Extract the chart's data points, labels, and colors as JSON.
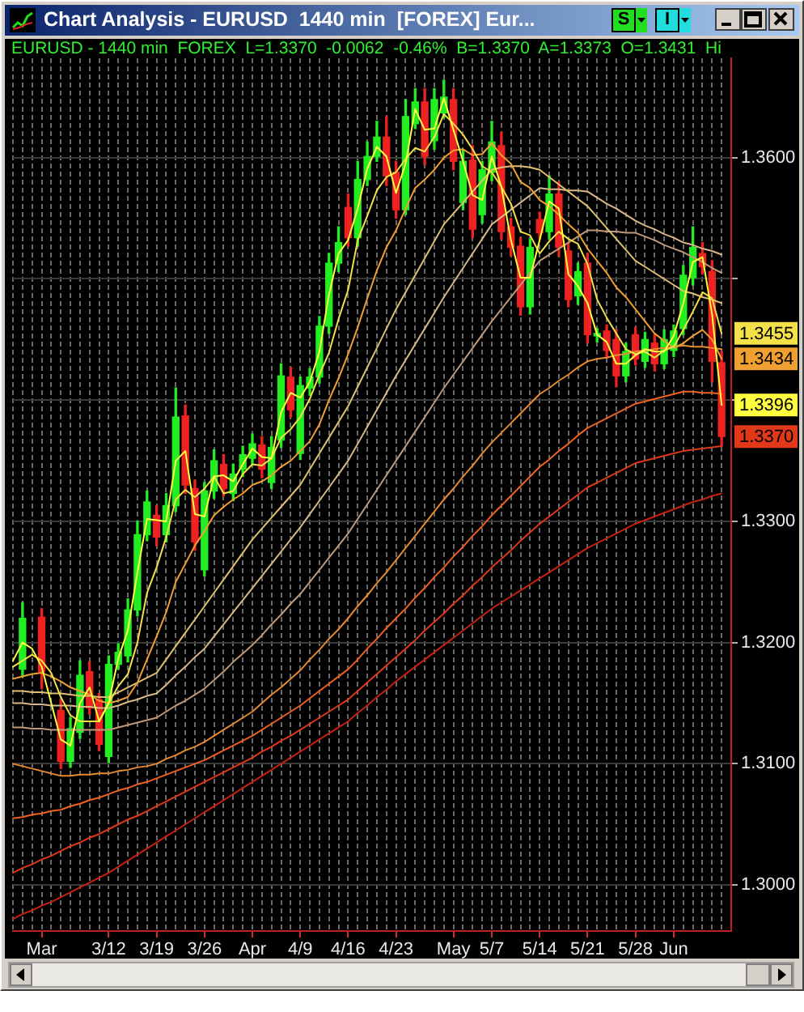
{
  "chart_data": {
    "type": "candlestick",
    "title": "Chart Analysis - EURUSD  1440 min  [FOREX] Eur...",
    "subtitle": "EURUSD - 1440 min  FOREX  L=1.3370  -0.0062  -0.46%  B=1.3370  A=1.3373  O=1.3431  Hi",
    "categories": [
      null,
      null,
      null,
      "Mar",
      null,
      null,
      null,
      null,
      null,
      null,
      "3/12",
      null,
      null,
      null,
      null,
      "3/19",
      null,
      null,
      null,
      null,
      "3/26",
      null,
      null,
      null,
      null,
      "Apr",
      null,
      null,
      null,
      null,
      "4/9",
      null,
      null,
      null,
      null,
      "4/16",
      null,
      null,
      null,
      null,
      "4/23",
      null,
      null,
      null,
      null,
      null,
      "May",
      null,
      null,
      null,
      "5/7",
      null,
      null,
      null,
      null,
      "5/14",
      null,
      null,
      null,
      null,
      "5/21",
      null,
      null,
      null,
      null,
      "5/28",
      null,
      null,
      null,
      "Jun",
      null,
      null,
      null,
      null,
      null,
      null
    ],
    "ohlc": [
      null,
      [
        1.3178,
        1.3233,
        1.3172,
        1.322
      ],
      null,
      [
        1.3221,
        1.3228,
        1.3162,
        1.3176
      ],
      null,
      [
        1.3144,
        1.3153,
        1.3096,
        1.3102
      ],
      [
        1.3102,
        1.3138,
        1.3097,
        1.3129
      ],
      [
        1.3126,
        1.3185,
        1.3121,
        1.3173
      ],
      [
        1.3176,
        1.3184,
        1.3141,
        1.3146
      ],
      [
        1.3153,
        1.3158,
        1.3111,
        1.3116
      ],
      [
        1.3106,
        1.3189,
        1.3101,
        1.3182
      ],
      [
        1.3182,
        1.3199,
        1.3178,
        1.3192
      ],
      [
        1.3189,
        1.3236,
        1.3184,
        1.3227
      ],
      [
        1.3227,
        1.33,
        1.3222,
        1.3289
      ],
      [
        1.3289,
        1.3325,
        1.3284,
        1.3316
      ],
      [
        1.3305,
        1.3313,
        1.328,
        1.3287
      ],
      [
        1.3289,
        1.3323,
        1.3283,
        1.3313
      ],
      [
        1.3313,
        1.341,
        1.3308,
        1.3386
      ],
      [
        1.3387,
        1.3396,
        1.3323,
        1.333
      ],
      [
        1.3327,
        1.3334,
        1.3276,
        1.3283
      ],
      [
        1.326,
        1.3332,
        1.3255,
        1.3325
      ],
      [
        1.3325,
        1.3359,
        1.3319,
        1.335
      ],
      [
        1.3347,
        1.3355,
        1.3321,
        1.3327
      ],
      [
        1.3323,
        1.3347,
        1.3317,
        1.3339
      ],
      [
        1.3343,
        1.3362,
        1.3337,
        1.3355
      ],
      [
        1.3352,
        1.3372,
        1.3347,
        1.3364
      ],
      [
        1.3363,
        1.337,
        1.3336,
        1.3343
      ],
      [
        1.3332,
        1.337,
        1.3327,
        1.3361
      ],
      [
        1.3367,
        1.343,
        1.3361,
        1.342
      ],
      [
        1.3419,
        1.3427,
        1.3386,
        1.3392
      ],
      [
        1.3356,
        1.3419,
        1.3351,
        1.3412
      ],
      [
        1.341,
        1.3426,
        1.3404,
        1.3419
      ],
      [
        1.3419,
        1.3469,
        1.3414,
        1.3461
      ],
      [
        1.3461,
        1.3521,
        1.3455,
        1.3513
      ],
      [
        1.3513,
        1.3543,
        1.3506,
        1.353
      ],
      [
        1.3559,
        1.357,
        1.3527,
        1.3534
      ],
      [
        1.3534,
        1.3597,
        1.3527,
        1.3582
      ],
      [
        1.3582,
        1.3613,
        1.3577,
        1.3601
      ],
      [
        1.3601,
        1.363,
        1.3597,
        1.3617
      ],
      [
        1.3617,
        1.3634,
        1.3577,
        1.3585
      ],
      [
        1.3588,
        1.3597,
        1.355,
        1.3557
      ],
      [
        1.3557,
        1.3648,
        1.3553,
        1.3634
      ],
      [
        1.3628,
        1.3657,
        1.3624,
        1.3646
      ],
      [
        1.3646,
        1.3657,
        1.3594,
        1.3601
      ],
      [
        1.3614,
        1.3657,
        1.3607,
        1.3648
      ],
      [
        1.3637,
        1.3664,
        1.3633,
        1.365
      ],
      [
        1.3648,
        1.3657,
        1.359,
        1.3597
      ],
      [
        1.3563,
        1.3606,
        1.3557,
        1.3597
      ],
      [
        1.3598,
        1.361,
        1.3534,
        1.3541
      ],
      [
        1.3553,
        1.3597,
        1.3546,
        1.359
      ],
      [
        1.3588,
        1.363,
        1.3581,
        1.3613
      ],
      [
        1.361,
        1.3621,
        1.3533,
        1.3539
      ],
      [
        1.3543,
        1.355,
        1.3519,
        1.3526
      ],
      [
        1.3527,
        1.3534,
        1.347,
        1.3477
      ],
      [
        1.3477,
        1.3533,
        1.3471,
        1.3526
      ],
      [
        1.3549,
        1.3555,
        1.3533,
        1.3538
      ],
      [
        1.3539,
        1.3585,
        1.3533,
        1.357
      ],
      [
        1.357,
        1.358,
        1.3519,
        1.3526
      ],
      [
        1.3523,
        1.353,
        1.3477,
        1.3483
      ],
      [
        1.3486,
        1.3513,
        1.3479,
        1.3506
      ],
      [
        1.3513,
        1.3521,
        1.3447,
        1.3454
      ],
      [
        1.3453,
        1.3459,
        1.3448,
        1.3455
      ],
      [
        1.3457,
        1.3462,
        1.3435,
        1.3441
      ],
      [
        1.345,
        1.3458,
        1.3411,
        1.342
      ],
      [
        1.342,
        1.3447,
        1.3415,
        1.344
      ],
      [
        1.3454,
        1.346,
        1.3429,
        1.3434
      ],
      [
        1.3432,
        1.3456,
        1.3427,
        1.345
      ],
      [
        1.3447,
        1.3454,
        1.3424,
        1.343
      ],
      [
        1.343,
        1.3458,
        1.3426,
        1.345
      ],
      [
        1.3441,
        1.3462,
        1.3436,
        1.3457
      ],
      [
        1.3459,
        1.3511,
        1.3454,
        1.3503
      ],
      [
        1.3501,
        1.3543,
        1.3495,
        1.3526
      ],
      [
        1.3521,
        1.353,
        1.3504,
        1.351
      ],
      [
        1.3506,
        1.3515,
        1.3415,
        1.3432
      ],
      [
        1.3431,
        1.344,
        1.3362,
        1.337
      ],
      null
    ],
    "colors": [
      null,
      "#22ee22",
      null,
      "#ee2222",
      null,
      "#ee2222",
      "#22ee22",
      "#22ee22",
      "#ee2222",
      "#ee2222",
      "#22ee22",
      "#22ee22",
      "#22ee22",
      "#22ee22",
      "#22ee22",
      "#ee2222",
      "#22ee22",
      "#22ee22",
      "#ee2222",
      "#ee2222",
      "#22ee22",
      "#22ee22",
      "#ee2222",
      "#22ee22",
      "#22ee22",
      "#22ee22",
      "#ee2222",
      "#22ee22",
      "#22ee22",
      "#ee2222",
      "#22ee22",
      "#22ee22",
      "#22ee22",
      "#22ee22",
      "#22ee22",
      "#ee2222",
      "#22ee22",
      "#22ee22",
      "#22ee22",
      "#ee2222",
      "#ee2222",
      "#22ee22",
      "#22ee22",
      "#ee2222",
      "#22ee22",
      "#22ee22",
      "#ee2222",
      "#22ee22",
      "#ee2222",
      "#22ee22",
      "#22ee22",
      "#ee2222",
      "#ee2222",
      "#ee2222",
      "#22ee22",
      "#ee2222",
      "#22ee22",
      "#ee2222",
      "#ee2222",
      "#22ee22",
      "#ee2222",
      "#22ee22",
      "#ee2222",
      "#ee2222",
      "#22ee22",
      "#ee2222",
      "#22ee22",
      "#ee2222",
      "#22ee22",
      "#22ee22",
      "#22ee22",
      "#22ee22",
      "#ee2222",
      "#ee2222",
      "#ee2222",
      null
    ],
    "series": [
      {
        "type": "line",
        "color": "#ffff40",
        "values": [
          1.3185,
          1.32,
          1.3195,
          1.318,
          1.315,
          1.312,
          1.3115,
          1.315,
          1.3163,
          1.3135,
          1.315,
          1.3187,
          1.321,
          1.3258,
          1.3302,
          1.3301,
          1.33,
          1.335,
          1.3358,
          1.3306,
          1.3304,
          1.3337,
          1.3338,
          1.3333,
          1.3347,
          1.336,
          1.3353,
          1.3352,
          1.339,
          1.3406,
          1.3402,
          1.3415,
          1.344,
          1.3487,
          1.3521,
          1.3532,
          1.3558,
          1.3591,
          1.3609,
          1.3601,
          1.3571,
          1.3595,
          1.364,
          1.3623,
          1.3624,
          1.3649,
          1.3623,
          1.3597,
          1.3569,
          1.3565,
          1.3601,
          1.3576,
          1.3532,
          1.3501,
          1.3501,
          1.3532,
          1.3564,
          1.3558,
          1.3504,
          1.3494,
          1.348,
          1.3454,
          1.3448,
          1.343,
          1.343,
          1.3437,
          1.3442,
          1.344,
          1.344,
          1.3453,
          1.348,
          1.3514,
          1.3518,
          1.3471,
          1.3396,
          null
        ]
      },
      {
        "type": "line",
        "color": "#f4e048",
        "values": [
          1.318,
          1.3185,
          1.319,
          1.3185,
          1.3175,
          1.3155,
          1.314,
          1.3135,
          1.3135,
          1.3135,
          1.315,
          1.3164,
          1.3174,
          1.32,
          1.3241,
          1.3262,
          1.3287,
          1.3318,
          1.3326,
          1.332,
          1.3327,
          1.3337,
          1.3323,
          1.3325,
          1.3339,
          1.3347,
          1.3346,
          1.3352,
          1.3369,
          1.3376,
          1.3386,
          1.3401,
          1.3421,
          1.3439,
          1.3467,
          1.3491,
          1.3532,
          1.3552,
          1.3573,
          1.3584,
          1.3588,
          1.3599,
          1.3608,
          1.3605,
          1.3617,
          1.3636,
          1.3628,
          1.3619,
          1.3607,
          1.3593,
          1.3588,
          1.3576,
          1.3562,
          1.3539,
          1.3536,
          1.3521,
          1.3531,
          1.3539,
          1.3533,
          1.3529,
          1.3512,
          1.3483,
          1.3468,
          1.3455,
          1.3442,
          1.3438,
          1.344,
          1.3435,
          1.3441,
          1.3444,
          1.3458,
          1.3473,
          1.3489,
          1.3484,
          1.3455,
          null
        ]
      },
      {
        "type": "line",
        "color": "#f0a030",
        "values": [
          1.317,
          1.3172,
          1.3174,
          1.3175,
          1.3172,
          1.3168,
          1.3163,
          1.316,
          1.3157,
          1.3152,
          1.315,
          1.3152,
          1.3155,
          1.3167,
          1.3186,
          1.3205,
          1.3225,
          1.325,
          1.3265,
          1.328,
          1.3292,
          1.3305,
          1.3312,
          1.3318,
          1.3323,
          1.333,
          1.3333,
          1.3338,
          1.3345,
          1.335,
          1.3358,
          1.3366,
          1.338,
          1.34,
          1.3418,
          1.3438,
          1.346,
          1.3484,
          1.3507,
          1.3526,
          1.354,
          1.3558,
          1.3575,
          1.3582,
          1.359,
          1.36,
          1.3606,
          1.3607,
          1.3602,
          1.3603,
          1.3612,
          1.3602,
          1.3595,
          1.358,
          1.3575,
          1.3565,
          1.356,
          1.3553,
          1.3545,
          1.3538,
          1.3525,
          1.3515,
          1.3505,
          1.3493,
          1.3485,
          1.3475,
          1.3465,
          1.3455,
          1.3449,
          1.3443,
          1.3447,
          1.3453,
          1.3458,
          1.345,
          1.3434,
          null
        ]
      },
      {
        "type": "line",
        "color": "#e0c070",
        "values": [
          1.316,
          1.316,
          1.3159,
          1.3159,
          1.3158,
          1.3158,
          1.3157,
          1.3156,
          1.3156,
          1.3155,
          1.3155,
          1.3159,
          1.3163,
          1.3167,
          1.3171,
          1.3175,
          1.3186,
          1.3197,
          1.3208,
          1.3219,
          1.323,
          1.3241,
          1.3252,
          1.3263,
          1.3274,
          1.3285,
          1.3294,
          1.3303,
          1.3312,
          1.3321,
          1.333,
          1.3343,
          1.3356,
          1.3369,
          1.3382,
          1.3395,
          1.3411,
          1.3427,
          1.3443,
          1.3459,
          1.3475,
          1.3489,
          1.3503,
          1.3517,
          1.3531,
          1.3545,
          1.3554,
          1.3563,
          1.3572,
          1.3581,
          1.359,
          1.3592,
          1.3593,
          1.3593,
          1.3592,
          1.359,
          1.3584,
          1.3578,
          1.3572,
          1.3566,
          1.356,
          1.3551,
          1.3542,
          1.3533,
          1.3524,
          1.3515,
          1.351,
          1.3505,
          1.35,
          1.3495,
          1.349,
          1.3488,
          1.3485,
          1.3483,
          1.348,
          null
        ]
      },
      {
        "type": "line",
        "color": "#d8b888",
        "values": [
          1.315,
          1.315,
          1.3149,
          1.3149,
          1.3148,
          1.3148,
          1.3148,
          1.3147,
          1.3147,
          1.3146,
          1.3146,
          1.3148,
          1.3151,
          1.3153,
          1.3156,
          1.3158,
          1.3165,
          1.3173,
          1.318,
          1.3188,
          1.3195,
          1.3205,
          1.3215,
          1.3225,
          1.3235,
          1.3245,
          1.3255,
          1.3265,
          1.3275,
          1.3285,
          1.3295,
          1.3306,
          1.3317,
          1.3328,
          1.3339,
          1.335,
          1.3364,
          1.3378,
          1.3392,
          1.3406,
          1.342,
          1.3433,
          1.3446,
          1.3459,
          1.3472,
          1.3485,
          1.3497,
          1.3509,
          1.3521,
          1.3533,
          1.3545,
          1.3551,
          1.3557,
          1.3563,
          1.3569,
          1.3575,
          1.3574,
          1.3574,
          1.3573,
          1.3573,
          1.3572,
          1.3567,
          1.3562,
          1.3558,
          1.3553,
          1.3548,
          1.3544,
          1.3541,
          1.3537,
          1.3534,
          1.353,
          1.3528,
          1.3525,
          1.3523,
          1.352,
          null
        ]
      },
      {
        "type": "line",
        "color": "#c09a78",
        "values": [
          1.313,
          1.313,
          1.3129,
          1.3129,
          1.3128,
          1.3128,
          1.3128,
          1.3128,
          1.3128,
          1.3128,
          1.3128,
          1.313,
          1.3132,
          1.3134,
          1.3136,
          1.3138,
          1.3143,
          1.3148,
          1.3152,
          1.3157,
          1.3162,
          1.3169,
          1.3176,
          1.3184,
          1.3191,
          1.3198,
          1.3206,
          1.3215,
          1.3223,
          1.3232,
          1.324,
          1.325,
          1.326,
          1.327,
          1.328,
          1.329,
          1.3302,
          1.3314,
          1.3326,
          1.3338,
          1.335,
          1.3362,
          1.3374,
          1.3386,
          1.3398,
          1.341,
          1.3421,
          1.3432,
          1.3443,
          1.3454,
          1.3465,
          1.3475,
          1.3485,
          1.3495,
          1.3505,
          1.3515,
          1.352,
          1.3525,
          1.353,
          1.3535,
          1.354,
          1.354,
          1.3539,
          1.3539,
          1.3538,
          1.3538,
          1.3535,
          1.3532,
          1.3528,
          1.3525,
          1.3522,
          1.3518,
          1.3514,
          1.3509,
          1.3505,
          null
        ]
      },
      {
        "type": "line",
        "color": "#e88a30",
        "values": [
          1.31,
          1.3098,
          1.3096,
          1.3094,
          1.3092,
          1.309,
          1.309,
          1.3091,
          1.3091,
          1.3092,
          1.3092,
          1.3094,
          1.3095,
          1.3097,
          1.3098,
          1.31,
          1.3104,
          1.3107,
          1.3111,
          1.3114,
          1.3118,
          1.3123,
          1.3128,
          1.3133,
          1.3138,
          1.3143,
          1.315,
          1.3157,
          1.3163,
          1.317,
          1.3177,
          1.3186,
          1.3194,
          1.3203,
          1.3211,
          1.322,
          1.323,
          1.3239,
          1.3249,
          1.3258,
          1.3268,
          1.3278,
          1.3288,
          1.3298,
          1.3308,
          1.3318,
          1.3327,
          1.3337,
          1.3346,
          1.3356,
          1.3365,
          1.3373,
          1.3381,
          1.3389,
          1.3397,
          1.3405,
          1.341,
          1.3416,
          1.3421,
          1.3427,
          1.3432,
          1.3434,
          1.3435,
          1.3437,
          1.3438,
          1.344,
          1.3441,
          1.3442,
          1.3443,
          1.3444,
          1.3445,
          1.3444,
          1.3444,
          1.3443,
          1.3442,
          null
        ]
      },
      {
        "type": "line",
        "color": "#f06020",
        "values": [
          1.3055,
          1.3056,
          1.3058,
          1.3059,
          1.3061,
          1.3062,
          1.3065,
          1.3067,
          1.307,
          1.3072,
          1.3075,
          1.3078,
          1.308,
          1.3083,
          1.3085,
          1.3088,
          1.3091,
          1.3094,
          1.3097,
          1.31,
          1.3103,
          1.3107,
          1.3111,
          1.3115,
          1.3119,
          1.3123,
          1.3128,
          1.3133,
          1.3138,
          1.3143,
          1.3148,
          1.3154,
          1.316,
          1.3166,
          1.3172,
          1.3178,
          1.3186,
          1.3195,
          1.3203,
          1.3212,
          1.322,
          1.3228,
          1.3237,
          1.3245,
          1.3254,
          1.3262,
          1.3271,
          1.3279,
          1.3288,
          1.3296,
          1.3305,
          1.3313,
          1.3321,
          1.3329,
          1.3337,
          1.3345,
          1.3351,
          1.3358,
          1.3364,
          1.3371,
          1.3377,
          1.3381,
          1.3385,
          1.3389,
          1.3393,
          1.3397,
          1.3399,
          1.3401,
          1.3403,
          1.3405,
          1.3407,
          1.3407,
          1.3406,
          1.3406,
          1.3405,
          null
        ]
      },
      {
        "type": "line",
        "color": "#e03818",
        "values": [
          1.301,
          1.3014,
          1.3017,
          1.3021,
          1.3024,
          1.3028,
          1.3032,
          1.3035,
          1.3039,
          1.3042,
          1.3046,
          1.305,
          1.3054,
          1.3057,
          1.3061,
          1.3065,
          1.3069,
          1.3073,
          1.3077,
          1.3081,
          1.3085,
          1.3089,
          1.3093,
          1.3097,
          1.3101,
          1.3105,
          1.311,
          1.3114,
          1.3119,
          1.3123,
          1.3128,
          1.3133,
          1.3138,
          1.3143,
          1.3148,
          1.3153,
          1.316,
          1.3167,
          1.3174,
          1.3181,
          1.3188,
          1.3195,
          1.3202,
          1.321,
          1.3217,
          1.3224,
          1.3232,
          1.3239,
          1.3247,
          1.3254,
          1.3262,
          1.3269,
          1.3276,
          1.3284,
          1.3291,
          1.3298,
          1.3304,
          1.331,
          1.3316,
          1.3322,
          1.3328,
          1.3332,
          1.3336,
          1.334,
          1.3344,
          1.3348,
          1.335,
          1.3352,
          1.3354,
          1.3356,
          1.3358,
          1.3359,
          1.336,
          1.3361,
          1.3362,
          null
        ]
      },
      {
        "type": "line",
        "color": "#c82010",
        "values": [
          1.2972,
          1.2976,
          1.2979,
          1.2983,
          1.2986,
          1.299,
          1.2994,
          1.2998,
          1.3002,
          1.3006,
          1.301,
          1.3015,
          1.302,
          1.3025,
          1.303,
          1.3035,
          1.304,
          1.3045,
          1.305,
          1.3055,
          1.306,
          1.3065,
          1.307,
          1.3075,
          1.308,
          1.3085,
          1.309,
          1.3095,
          1.31,
          1.3105,
          1.311,
          1.3115,
          1.312,
          1.3125,
          1.313,
          1.3135,
          1.3142,
          1.3148,
          1.3155,
          1.3161,
          1.3168,
          1.3174,
          1.318,
          1.3186,
          1.3192,
          1.3198,
          1.3204,
          1.321,
          1.3216,
          1.3222,
          1.3228,
          1.3233,
          1.3238,
          1.3243,
          1.3248,
          1.3253,
          1.3258,
          1.3263,
          1.3268,
          1.3273,
          1.3278,
          1.3282,
          1.3286,
          1.329,
          1.3294,
          1.3298,
          1.3301,
          1.3304,
          1.3307,
          1.331,
          1.3313,
          1.3316,
          1.3318,
          1.3321,
          1.3323,
          null
        ]
      }
    ],
    "ylim": [
      1.2962,
      1.3682
    ],
    "yticks": [
      {
        "value": 1.3,
        "label": "1.3000"
      },
      {
        "value": 1.31,
        "label": "1.3100"
      },
      {
        "value": 1.32,
        "label": "1.3200"
      },
      {
        "value": 1.33,
        "label": "1.3300"
      },
      {
        "value": 1.34,
        "label": null
      },
      {
        "value": 1.35,
        "label": null
      },
      {
        "value": 1.36,
        "label": "1.3600"
      }
    ],
    "grid": true,
    "annotations": [
      "S",
      "I",
      {
        "text": "1.3455",
        "y": 1.3455
      },
      {
        "text": "1.3434",
        "y": 1.3434
      },
      {
        "text": "1.3396",
        "y": 1.3396
      },
      {
        "text": "1.3370",
        "y": 1.337
      }
    ]
  }
}
